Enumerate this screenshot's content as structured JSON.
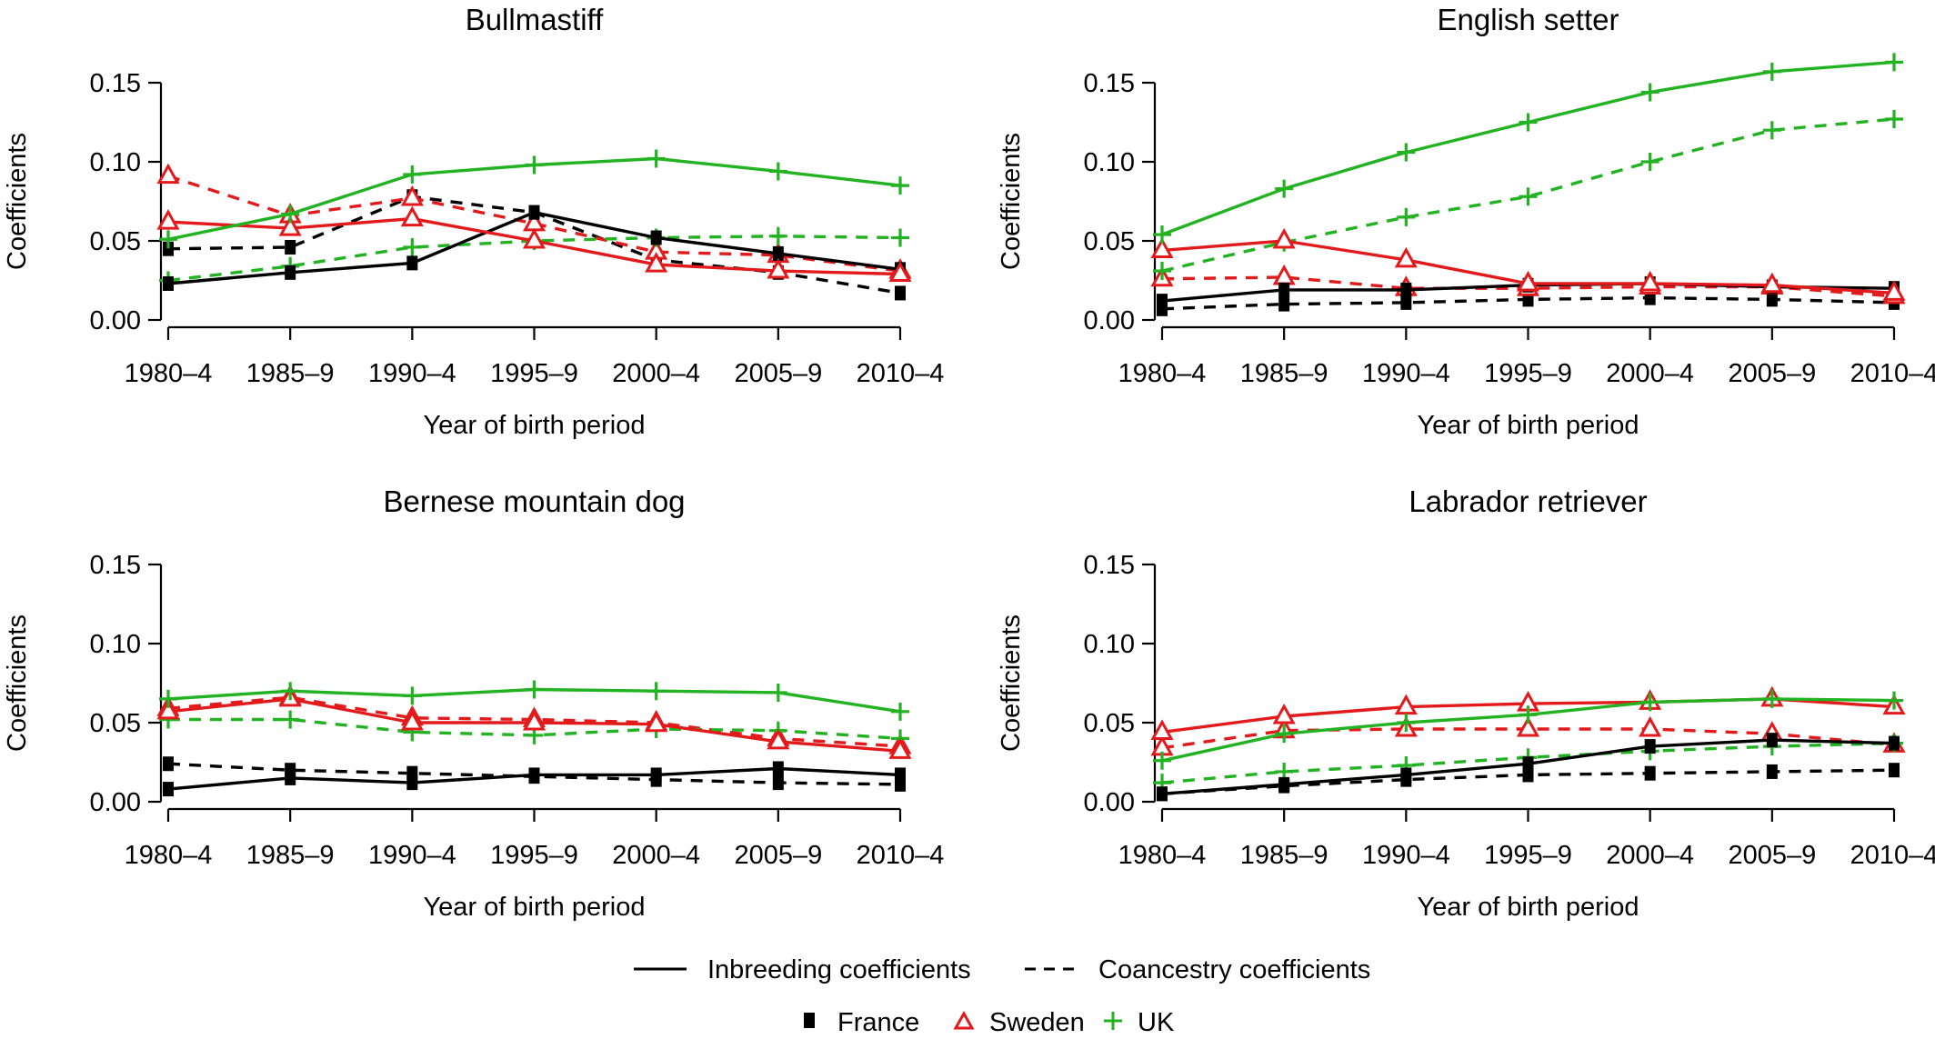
{
  "chart_data": [
    {
      "type": "line",
      "title": "Bullmastiff",
      "xlabel": "Year of birth period",
      "ylabel": "Coefficients",
      "ylim": [
        0,
        0.15
      ],
      "yticks": [
        "0.00",
        "0.05",
        "0.10",
        "0.15"
      ],
      "categories": [
        "1980–4",
        "1985–9",
        "1990–4",
        "1995–9",
        "2000–4",
        "2005–9",
        "2010–4"
      ],
      "series": [
        {
          "country": "France",
          "measure": "inbreeding",
          "values": [
            0.023,
            0.03,
            0.036,
            0.068,
            0.052,
            0.042,
            0.032
          ]
        },
        {
          "country": "France",
          "measure": "coancestry",
          "values": [
            0.045,
            0.046,
            0.078,
            0.068,
            0.038,
            0.03,
            0.017
          ]
        },
        {
          "country": "Sweden",
          "measure": "inbreeding",
          "values": [
            0.062,
            0.058,
            0.064,
            0.05,
            0.035,
            0.031,
            0.029
          ]
        },
        {
          "country": "Sweden",
          "measure": "coancestry",
          "values": [
            0.091,
            0.066,
            0.077,
            0.061,
            0.043,
            0.041,
            0.031
          ]
        },
        {
          "country": "UK",
          "measure": "inbreeding",
          "values": [
            0.051,
            0.067,
            0.092,
            0.098,
            0.102,
            0.094,
            0.085
          ]
        },
        {
          "country": "UK",
          "measure": "coancestry",
          "values": [
            0.025,
            0.034,
            0.046,
            0.05,
            0.052,
            0.053,
            0.052
          ]
        }
      ]
    },
    {
      "type": "line",
      "title": "English setter",
      "xlabel": "Year of birth period",
      "ylabel": "Coefficients",
      "ylim": [
        0,
        0.15
      ],
      "yticks": [
        "0.00",
        "0.05",
        "0.10",
        "0.15"
      ],
      "categories": [
        "1980–4",
        "1985–9",
        "1990–4",
        "1995–9",
        "2000–4",
        "2005–9",
        "2010–4"
      ],
      "series": [
        {
          "country": "France",
          "measure": "inbreeding",
          "values": [
            0.012,
            0.019,
            0.019,
            0.022,
            0.023,
            0.021,
            0.02
          ]
        },
        {
          "country": "France",
          "measure": "coancestry",
          "values": [
            0.007,
            0.01,
            0.011,
            0.013,
            0.014,
            0.013,
            0.011
          ]
        },
        {
          "country": "Sweden",
          "measure": "inbreeding",
          "values": [
            0.044,
            0.05,
            0.038,
            0.023,
            0.023,
            0.022,
            0.017
          ]
        },
        {
          "country": "Sweden",
          "measure": "coancestry",
          "values": [
            0.026,
            0.027,
            0.02,
            0.02,
            0.021,
            0.021,
            0.015
          ]
        },
        {
          "country": "UK",
          "measure": "inbreeding",
          "values": [
            0.054,
            0.083,
            0.106,
            0.125,
            0.144,
            0.157,
            0.163
          ]
        },
        {
          "country": "UK",
          "measure": "coancestry",
          "values": [
            0.031,
            0.049,
            0.065,
            0.078,
            0.1,
            0.12,
            0.127
          ]
        }
      ]
    },
    {
      "type": "line",
      "title": "Bernese mountain dog",
      "xlabel": "Year of birth period",
      "ylabel": "Coefficients",
      "ylim": [
        0,
        0.15
      ],
      "yticks": [
        "0.00",
        "0.05",
        "0.10",
        "0.15"
      ],
      "categories": [
        "1980–4",
        "1985–9",
        "1990–4",
        "1995–9",
        "2000–4",
        "2005–9",
        "2010–4"
      ],
      "series": [
        {
          "country": "France",
          "measure": "inbreeding",
          "values": [
            0.008,
            0.015,
            0.012,
            0.017,
            0.017,
            0.021,
            0.017
          ]
        },
        {
          "country": "France",
          "measure": "coancestry",
          "values": [
            0.024,
            0.02,
            0.018,
            0.016,
            0.014,
            0.012,
            0.011
          ]
        },
        {
          "country": "Sweden",
          "measure": "inbreeding",
          "values": [
            0.057,
            0.065,
            0.05,
            0.05,
            0.049,
            0.038,
            0.032
          ]
        },
        {
          "country": "Sweden",
          "measure": "coancestry",
          "values": [
            0.059,
            0.066,
            0.053,
            0.052,
            0.05,
            0.04,
            0.035
          ]
        },
        {
          "country": "UK",
          "measure": "inbreeding",
          "values": [
            0.065,
            0.07,
            0.067,
            0.071,
            0.07,
            0.069,
            0.057
          ]
        },
        {
          "country": "UK",
          "measure": "coancestry",
          "values": [
            0.052,
            0.052,
            0.044,
            0.042,
            0.046,
            0.045,
            0.04
          ]
        }
      ]
    },
    {
      "type": "line",
      "title": "Labrador retriever",
      "xlabel": "Year of birth period",
      "ylabel": "Coefficients",
      "ylim": [
        0,
        0.15
      ],
      "yticks": [
        "0.00",
        "0.05",
        "0.10",
        "0.15"
      ],
      "categories": [
        "1980–4",
        "1985–9",
        "1990–4",
        "1995–9",
        "2000–4",
        "2005–9",
        "2010–4"
      ],
      "series": [
        {
          "country": "France",
          "measure": "inbreeding",
          "values": [
            0.005,
            0.011,
            0.017,
            0.024,
            0.035,
            0.039,
            0.037
          ]
        },
        {
          "country": "France",
          "measure": "coancestry",
          "values": [
            0.005,
            0.01,
            0.014,
            0.017,
            0.018,
            0.019,
            0.02
          ]
        },
        {
          "country": "Sweden",
          "measure": "inbreeding",
          "values": [
            0.044,
            0.054,
            0.06,
            0.062,
            0.063,
            0.065,
            0.06
          ]
        },
        {
          "country": "Sweden",
          "measure": "coancestry",
          "values": [
            0.034,
            0.045,
            0.046,
            0.046,
            0.046,
            0.043,
            0.036
          ]
        },
        {
          "country": "UK",
          "measure": "inbreeding",
          "values": [
            0.026,
            0.043,
            0.05,
            0.055,
            0.063,
            0.065,
            0.064
          ]
        },
        {
          "country": "UK",
          "measure": "coancestry",
          "values": [
            0.012,
            0.019,
            0.023,
            0.028,
            0.032,
            0.035,
            0.037
          ]
        }
      ]
    }
  ],
  "legend": {
    "line_types": [
      {
        "label": "Inbreeding coefficients",
        "measure": "inbreeding"
      },
      {
        "label": "Coancestry coefficients",
        "measure": "coancestry"
      }
    ],
    "countries": [
      {
        "label": "France",
        "color": "#000000",
        "marker": "square"
      },
      {
        "label": "Sweden",
        "color": "#e31a1c",
        "marker": "triangle"
      },
      {
        "label": "UK",
        "color": "#22b222",
        "marker": "plus"
      }
    ]
  }
}
